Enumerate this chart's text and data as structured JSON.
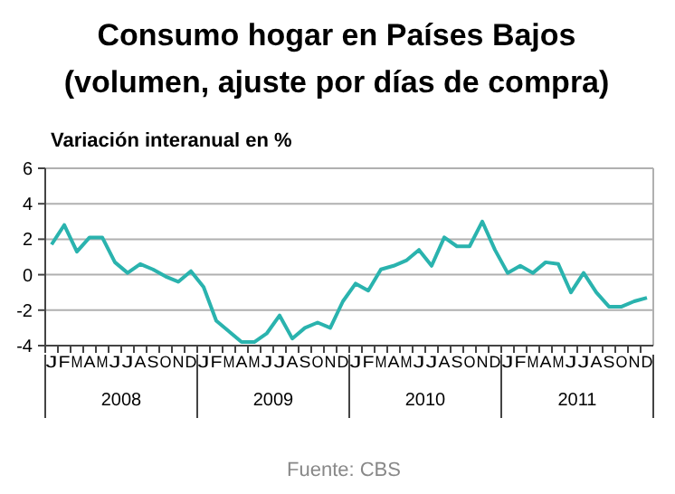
{
  "chart_data": {
    "type": "line",
    "title": "Consumo hogar en Países Bajos",
    "subtitle": "(volumen, ajuste por días de compra)",
    "ylabel": "Variación interanual en %",
    "categories": [
      "J",
      "F",
      "M",
      "A",
      "M",
      "J",
      "J",
      "A",
      "S",
      "O",
      "N",
      "D",
      "J",
      "F",
      "M",
      "A",
      "M",
      "J",
      "J",
      "A",
      "S",
      "O",
      "N",
      "D",
      "J",
      "F",
      "M",
      "A",
      "M",
      "J",
      "J",
      "A",
      "S",
      "O",
      "N",
      "D",
      "J",
      "F",
      "M",
      "A",
      "M",
      "J",
      "J",
      "A",
      "S",
      "O",
      "N",
      "D"
    ],
    "series": [
      {
        "color": "#2ab3ae",
        "values": [
          1.7,
          2.8,
          1.3,
          2.1,
          2.1,
          0.7,
          0.1,
          0.6,
          0.3,
          -0.1,
          -0.4,
          0.2,
          -0.7,
          -2.6,
          -3.2,
          -3.8,
          -3.8,
          -3.3,
          -2.3,
          -3.6,
          -3.0,
          -2.7,
          -3.0,
          -1.5,
          -0.5,
          -0.9,
          0.3,
          0.5,
          0.8,
          1.4,
          0.5,
          2.1,
          1.6,
          1.6,
          3.0,
          1.4,
          0.1,
          0.5,
          0.1,
          0.7,
          0.6,
          -1.0,
          0.1,
          -1.0,
          -1.8,
          -1.8,
          -1.5,
          -1.3
        ]
      }
    ],
    "ylim": [
      -4,
      6
    ],
    "yticks": [
      -4,
      -2,
      0,
      2,
      4,
      6
    ],
    "grid": "y",
    "marker": "none",
    "line_style": "solid",
    "annotations": [
      "2008",
      "2009",
      "2010",
      "2011",
      "Fuente: CBS"
    ]
  }
}
